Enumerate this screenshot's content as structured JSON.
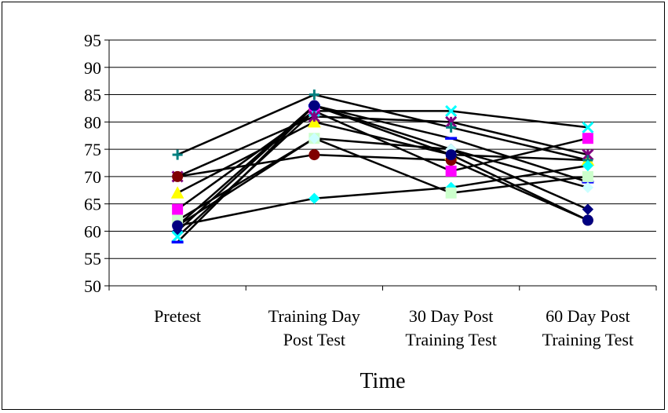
{
  "chart_data": {
    "type": "line",
    "title": "",
    "xlabel": "Time",
    "ylabel": "",
    "ylim": [
      50,
      95
    ],
    "ytick_step": 5,
    "grid": true,
    "legend": "none",
    "categories": [
      [
        "Pretest"
      ],
      [
        "Training Day",
        "Post Test"
      ],
      [
        "30 Day Post",
        "Training Test"
      ],
      [
        "60 Day Post",
        "Training Test"
      ]
    ],
    "series": [
      {
        "values": [
          60,
          83,
          75,
          64
        ],
        "color": "#000080",
        "marker": "diamond"
      },
      {
        "values": [
          64,
          82,
          71,
          77
        ],
        "color": "#FF00FF",
        "marker": "square"
      },
      {
        "values": [
          67,
          80,
          74,
          73
        ],
        "color": "#FFFF00",
        "marker": "triangle"
      },
      {
        "values": [
          59,
          82,
          82,
          79
        ],
        "color": "#00FFFF",
        "marker": "x"
      },
      {
        "values": [
          70,
          81,
          80,
          74
        ],
        "color": "#800080",
        "marker": "asterisk"
      },
      {
        "values": [
          70,
          74,
          73,
          62
        ],
        "color": "#800000",
        "marker": "circle"
      },
      {
        "values": [
          74,
          85,
          79,
          73
        ],
        "color": "#008080",
        "marker": "plus"
      },
      {
        "values": [
          58,
          83,
          77,
          69
        ],
        "color": "#0000FF",
        "marker": "dash"
      },
      {
        "values": [
          61,
          66,
          68,
          72
        ],
        "color": "#00FFFF",
        "marker": "diamond"
      },
      {
        "values": [
          62,
          77,
          67,
          70
        ],
        "color": "#CCFFCC",
        "marker": "square"
      },
      {
        "values": [
          61,
          77,
          75,
          68
        ],
        "color": "#CCFFFF",
        "marker": "diamond"
      },
      {
        "values": [
          61,
          83,
          74,
          62
        ],
        "color": "#000080",
        "marker": "circle"
      }
    ]
  }
}
